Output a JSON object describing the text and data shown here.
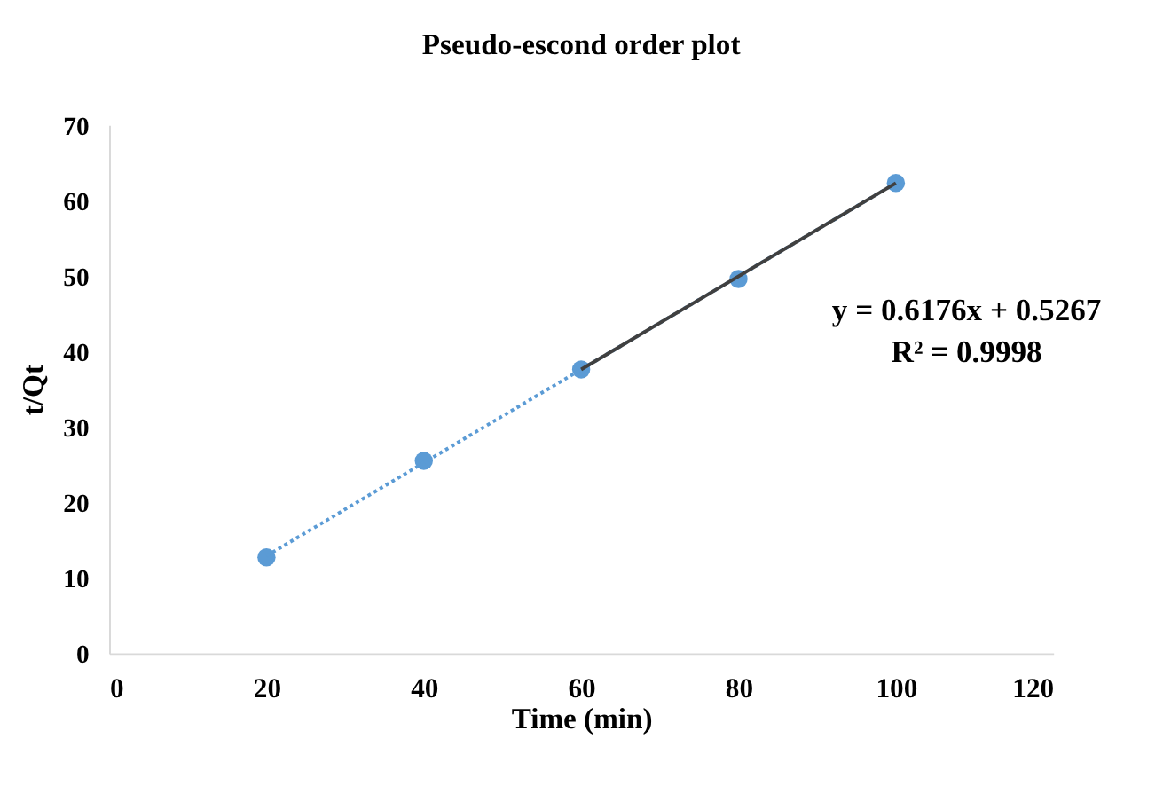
{
  "chart_data": {
    "type": "scatter",
    "title": "Pseudo-escond order plot",
    "xlabel": "Time (min)",
    "ylabel": "t/Qt",
    "x": [
      20,
      40,
      60,
      80,
      100
    ],
    "series": [
      {
        "color": "#5b9bd5",
        "values": [
          12.7,
          25.5,
          37.6,
          49.6,
          62.3
        ]
      },
      {
        "type": "line",
        "marker": "none",
        "line_style": "dotted",
        "color": "#5b9bd5",
        "x": [
          20,
          100
        ],
        "values": [
          12.9,
          62.3
        ]
      },
      {
        "type": "line",
        "marker": "none",
        "line_style": "solid",
        "color": "#404040",
        "x": [
          60,
          100
        ],
        "values": [
          37.6,
          62.3
        ]
      }
    ],
    "marker": "circle",
    "annotations": [
      "y = 0.6176x + 0.5267",
      "R² = 0.9998"
    ],
    "xlim": [
      0,
      120
    ],
    "xticks": [
      0,
      20,
      40,
      60,
      80,
      100,
      120
    ],
    "ylim": [
      0,
      70
    ],
    "yticks": [
      0,
      10,
      20,
      30,
      40,
      50,
      60,
      70
    ],
    "grid": false
  }
}
